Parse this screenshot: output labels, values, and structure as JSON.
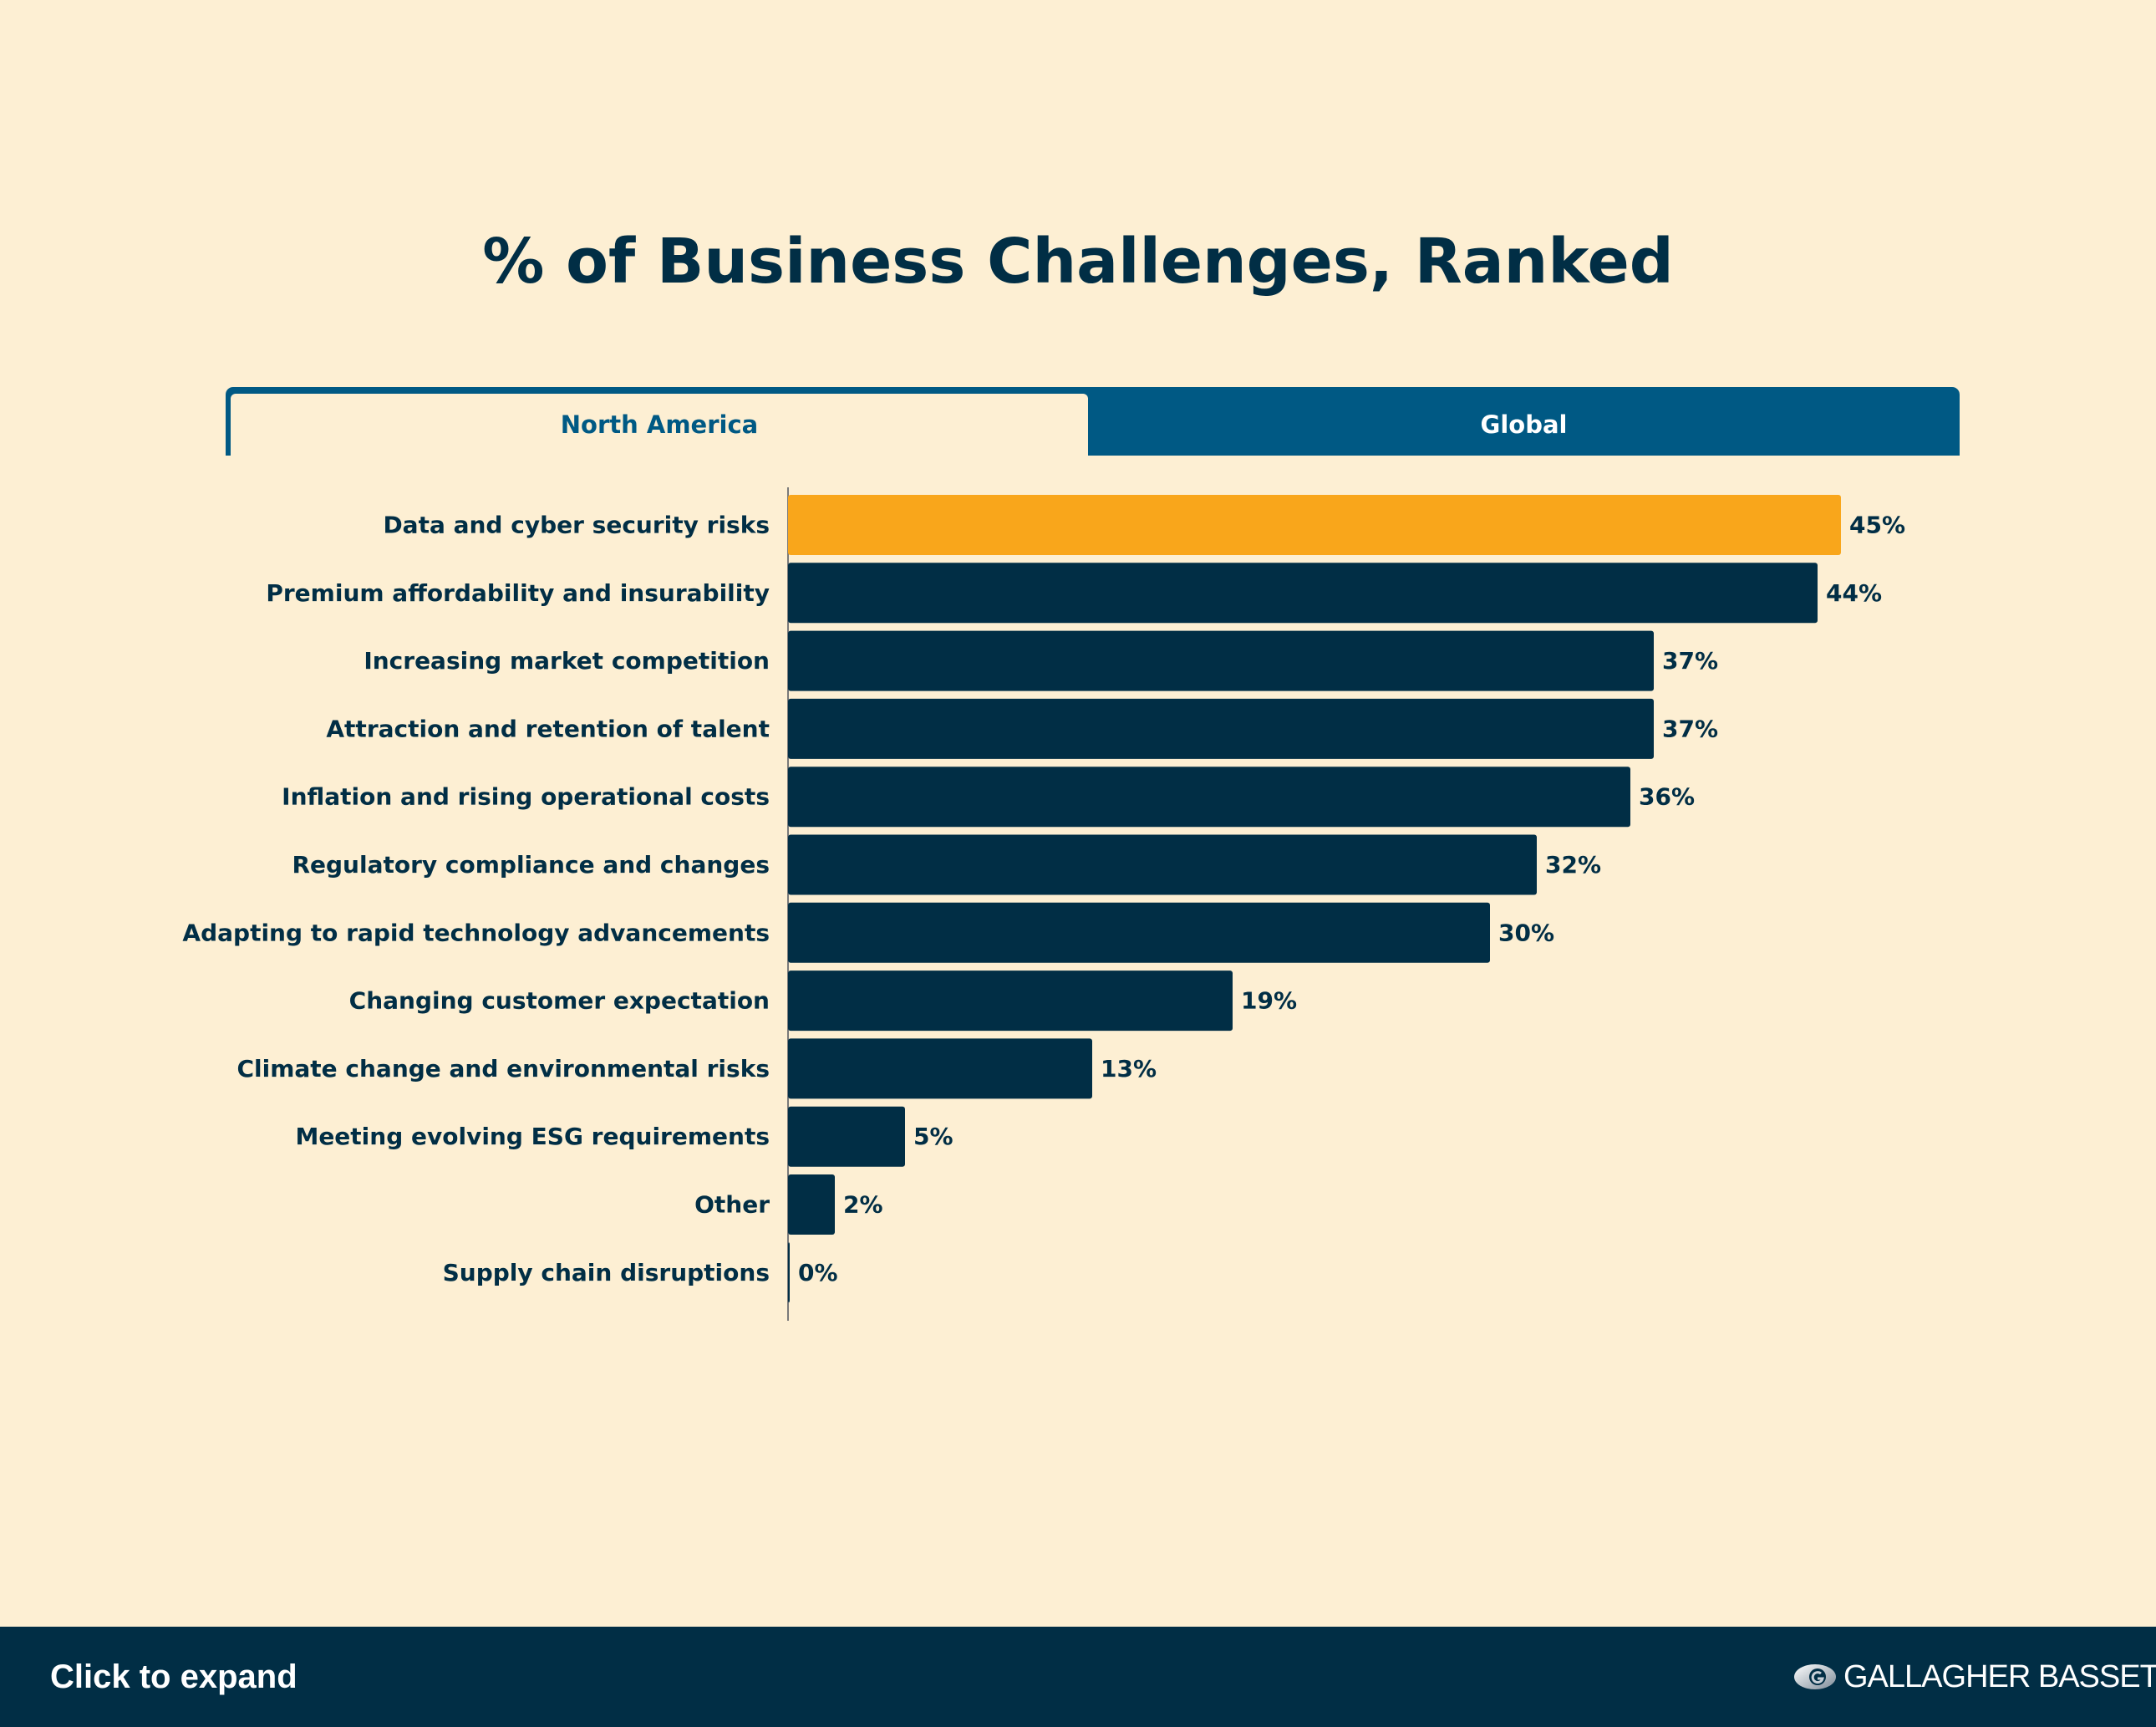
{
  "chart_data": {
    "type": "bar",
    "orientation": "horizontal",
    "title": "% of Business Challenges, Ranked",
    "categories": [
      "Data and cyber security risks",
      "Premium affordability and insurability",
      "Increasing market competition",
      "Attraction and retention of talent",
      "Inflation and rising operational costs",
      "Regulatory compliance and changes",
      "Adapting to rapid technology advancements",
      "Changing customer expectation",
      "Climate change and environmental risks",
      "Meeting evolving ESG requirements",
      "Other",
      "Supply chain disruptions"
    ],
    "values": [
      45,
      44,
      37,
      37,
      36,
      32,
      30,
      19,
      13,
      5,
      2,
      0
    ],
    "value_labels": [
      "45%",
      "44%",
      "37%",
      "37%",
      "36%",
      "32%",
      "30%",
      "19%",
      "13%",
      "5%",
      "2%",
      "0%"
    ],
    "xlim": [
      0,
      50
    ],
    "highlight_index": 0,
    "colors": {
      "highlight": "#F9A61B",
      "bar": "#012E45"
    },
    "grid": false
  },
  "tabs": [
    {
      "label": "North America",
      "active": true
    },
    {
      "label": "Global",
      "active": false
    }
  ],
  "footer": {
    "expand_label": "Click to expand",
    "logo_text": "GALLAGHER BASSETT"
  },
  "colors": {
    "background": "#FDEFD3",
    "navy": "#012E45",
    "tab_blue": "#005984",
    "orange": "#F9A61B"
  }
}
